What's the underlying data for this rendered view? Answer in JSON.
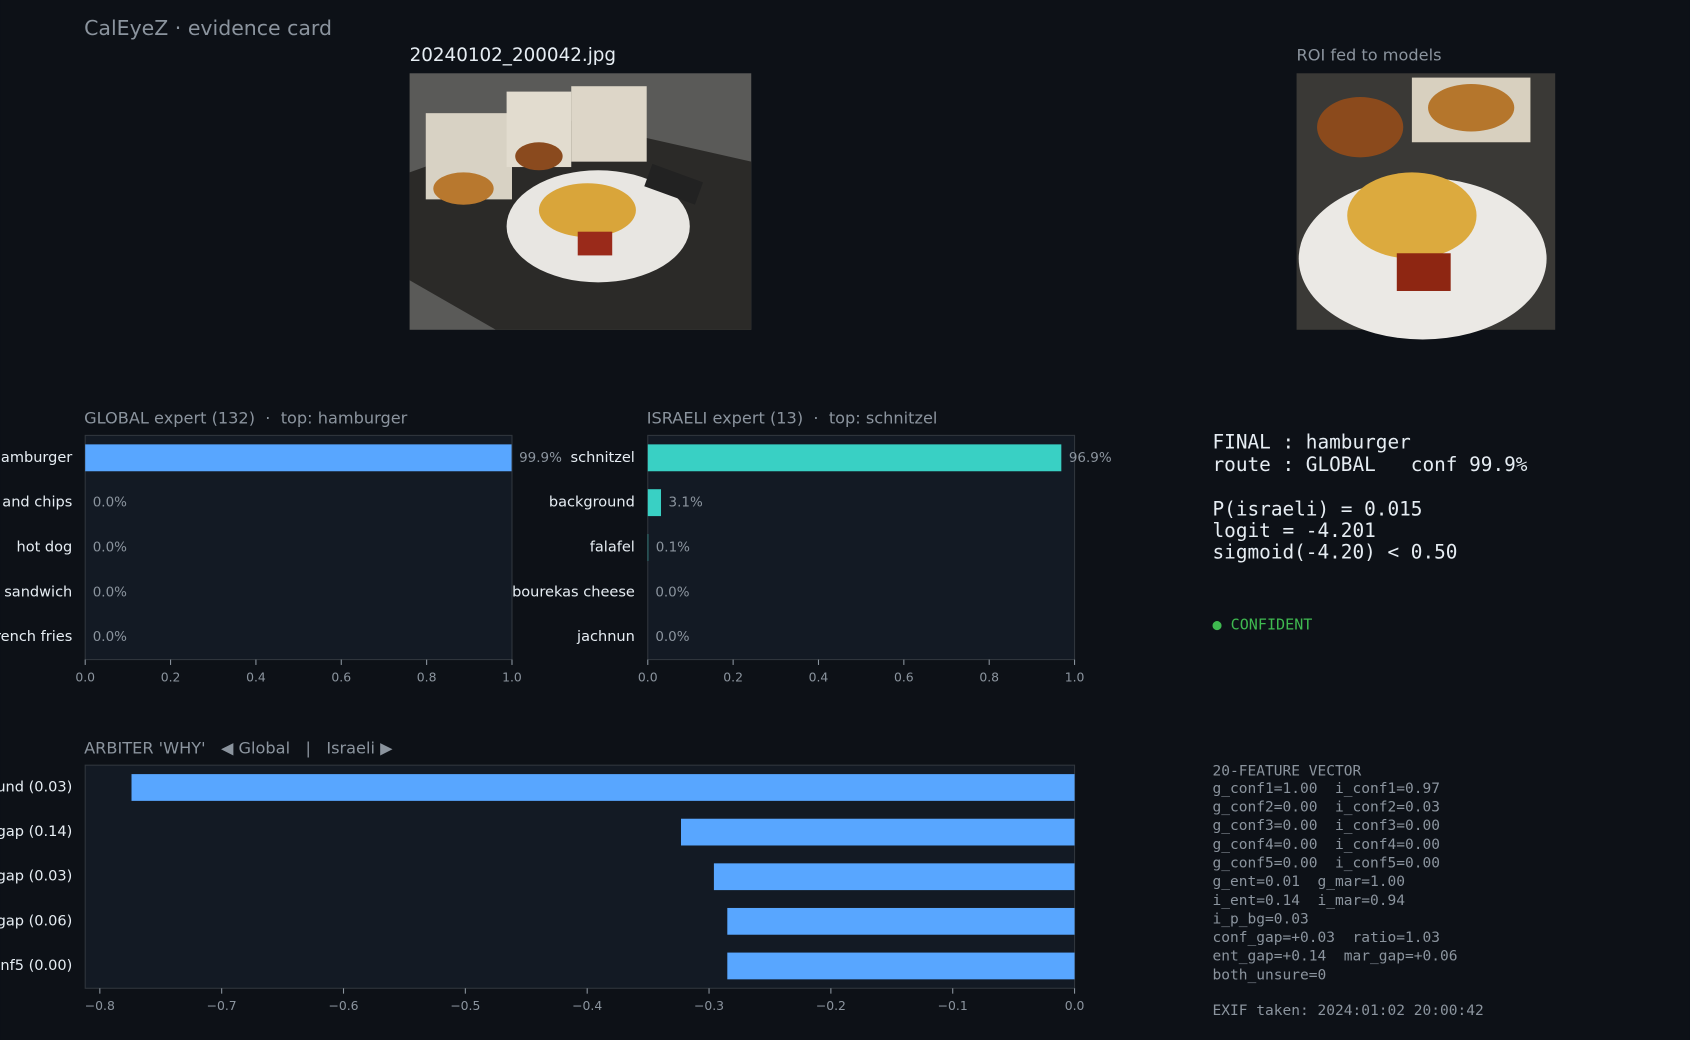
{
  "header": {
    "title": "CalEyeZ · evidence card"
  },
  "images": {
    "main_caption": "20240102_200042.jpg",
    "roi_caption": "ROI fed to models"
  },
  "chart_data": [
    {
      "type": "barh",
      "title": "GLOBAL expert (132)  ·  top: hamburger",
      "categories": [
        "hamburger",
        "fish and chips",
        "hot dog",
        "sandwich",
        "french fries"
      ],
      "values": [
        0.999,
        0.0,
        0.0,
        0.0,
        0.0
      ],
      "value_labels": [
        "99.9%",
        "0.0%",
        "0.0%",
        "0.0%",
        "0.0%"
      ],
      "color": "#58a6ff",
      "xlim": [
        0,
        1
      ],
      "xticks": [
        {
          "value": 0,
          "label": "0.0"
        },
        {
          "value": 0.2,
          "label": "0.2"
        },
        {
          "value": 0.4,
          "label": "0.4"
        },
        {
          "value": 0.6,
          "label": "0.6"
        },
        {
          "value": 0.8,
          "label": "0.8"
        },
        {
          "value": 1,
          "label": "1.0"
        }
      ]
    },
    {
      "type": "barh",
      "title": "ISRAELI expert (13)  ·  top: schnitzel",
      "categories": [
        "schnitzel",
        "background",
        "falafel",
        "bourekas cheese",
        "jachnun"
      ],
      "values": [
        0.969,
        0.031,
        0.001,
        0.0,
        0.0
      ],
      "value_labels": [
        "96.9%",
        "3.1%",
        "0.1%",
        "0.0%",
        "0.0%"
      ],
      "color": "#39d0c4",
      "xlim": [
        0,
        1
      ],
      "xticks": [
        {
          "value": 0,
          "label": "0.0"
        },
        {
          "value": 0.2,
          "label": "0.2"
        },
        {
          "value": 0.4,
          "label": "0.4"
        },
        {
          "value": 0.6,
          "label": "0.6"
        },
        {
          "value": 0.8,
          "label": "0.8"
        },
        {
          "value": 1,
          "label": "1.0"
        }
      ]
    },
    {
      "type": "barh",
      "title": "ARBITER 'WHY'   ◀ Global   |   Israeli ▶",
      "categories": [
        "ound (0.03)",
        "gap (0.14)",
        "gap (0.03)",
        "gap (0.06)",
        "onf5 (0.00)"
      ],
      "values": [
        -0.774,
        -0.323,
        -0.296,
        -0.285,
        -0.285
      ],
      "color": "#58a6ff",
      "xlim": [
        -0.812,
        0
      ],
      "xticks": [
        {
          "value": -0.8,
          "label": "−0.8"
        },
        {
          "value": -0.7,
          "label": "−0.7"
        },
        {
          "value": -0.6,
          "label": "−0.6"
        },
        {
          "value": -0.5,
          "label": "−0.5"
        },
        {
          "value": -0.4,
          "label": "−0.4"
        },
        {
          "value": -0.3,
          "label": "−0.3"
        },
        {
          "value": -0.2,
          "label": "−0.2"
        },
        {
          "value": -0.1,
          "label": "−0.1"
        },
        {
          "value": 0,
          "label": "0.0"
        }
      ]
    }
  ],
  "summary": {
    "lines": [
      "FINAL : hamburger",
      "route : GLOBAL   conf 99.9%",
      "P(israeli) = 0.015",
      "logit = -4.201",
      "sigmoid(-4.20) < 0.50"
    ],
    "status": "● CONFIDENT"
  },
  "features": {
    "title": "20-FEATURE VECTOR",
    "lines": [
      "g_conf1=1.00  i_conf1=0.97",
      "g_conf2=0.00  i_conf2=0.03",
      "g_conf3=0.00  i_conf3=0.00",
      "g_conf4=0.00  i_conf4=0.00",
      "g_conf5=0.00  i_conf5=0.00",
      "g_ent=0.01  g_mar=1.00",
      "i_ent=0.14  i_mar=0.94",
      "i_p_bg=0.03",
      "conf_gap=+0.03  ratio=1.03",
      "ent_gap=+0.14  mar_gap=+0.06",
      "both_unsure=0"
    ],
    "exif": "EXIF taken: 2024:01:02 20:00:42"
  }
}
